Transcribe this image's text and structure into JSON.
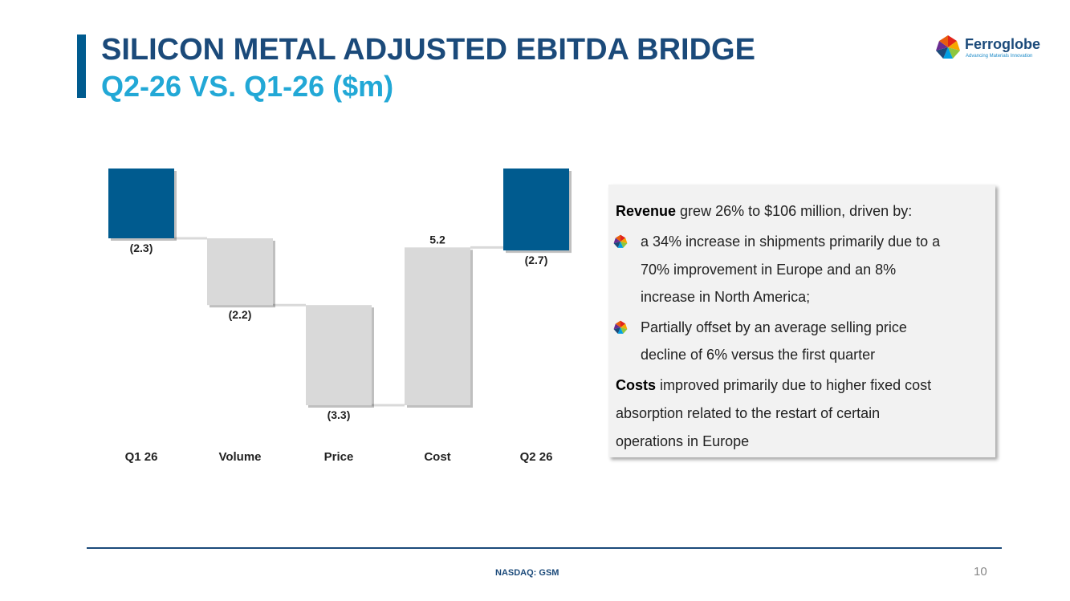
{
  "header": {
    "title": "SILICON METAL ADJUSTED EBITDA BRIDGE",
    "subtitle": "Q2-26 VS. Q1-26 ($m)"
  },
  "logo": {
    "name": "Ferroglobe",
    "tagline": "Advancing Materials Innovation"
  },
  "chart_data": {
    "type": "bar",
    "subtype": "waterfall",
    "categories": [
      "Q1 26",
      "Volume",
      "Price",
      "Cost",
      "Q2 26"
    ],
    "values": [
      -2.3,
      -2.2,
      -3.3,
      5.2,
      -2.7
    ],
    "value_labels": [
      "(2.3)",
      "(2.2)",
      "(3.3)",
      "5.2",
      "(2.7)"
    ],
    "bar_kinds": [
      "total",
      "delta",
      "delta",
      "delta",
      "total"
    ],
    "colors": {
      "total": "#005B8F",
      "delta": "#D9D9D9"
    },
    "title": "",
    "xlabel": "",
    "ylabel": "",
    "grid": false,
    "legend": "none"
  },
  "commentary": {
    "revenue_label": "Revenue",
    "revenue_text": " grew 26% to $106 million, driven by:",
    "bullet1_lines": [
      "a 34% increase in shipments primarily due to a",
      "70% improvement in Europe and an 8%",
      "increase in North America;"
    ],
    "bullet2_lines": [
      "Partially offset by an average selling price",
      "decline of 6% versus the first quarter"
    ],
    "costs_label": "Costs",
    "costs_text": " improved primarily due to higher fixed cost",
    "costs_lines": [
      "absorption related to the restart of certain",
      "operations in Europe"
    ],
    "bullet_icon": "ferroglobe-globe-icon"
  },
  "footer": {
    "ticker": "NASDAQ: GSM",
    "page_number": "10"
  }
}
